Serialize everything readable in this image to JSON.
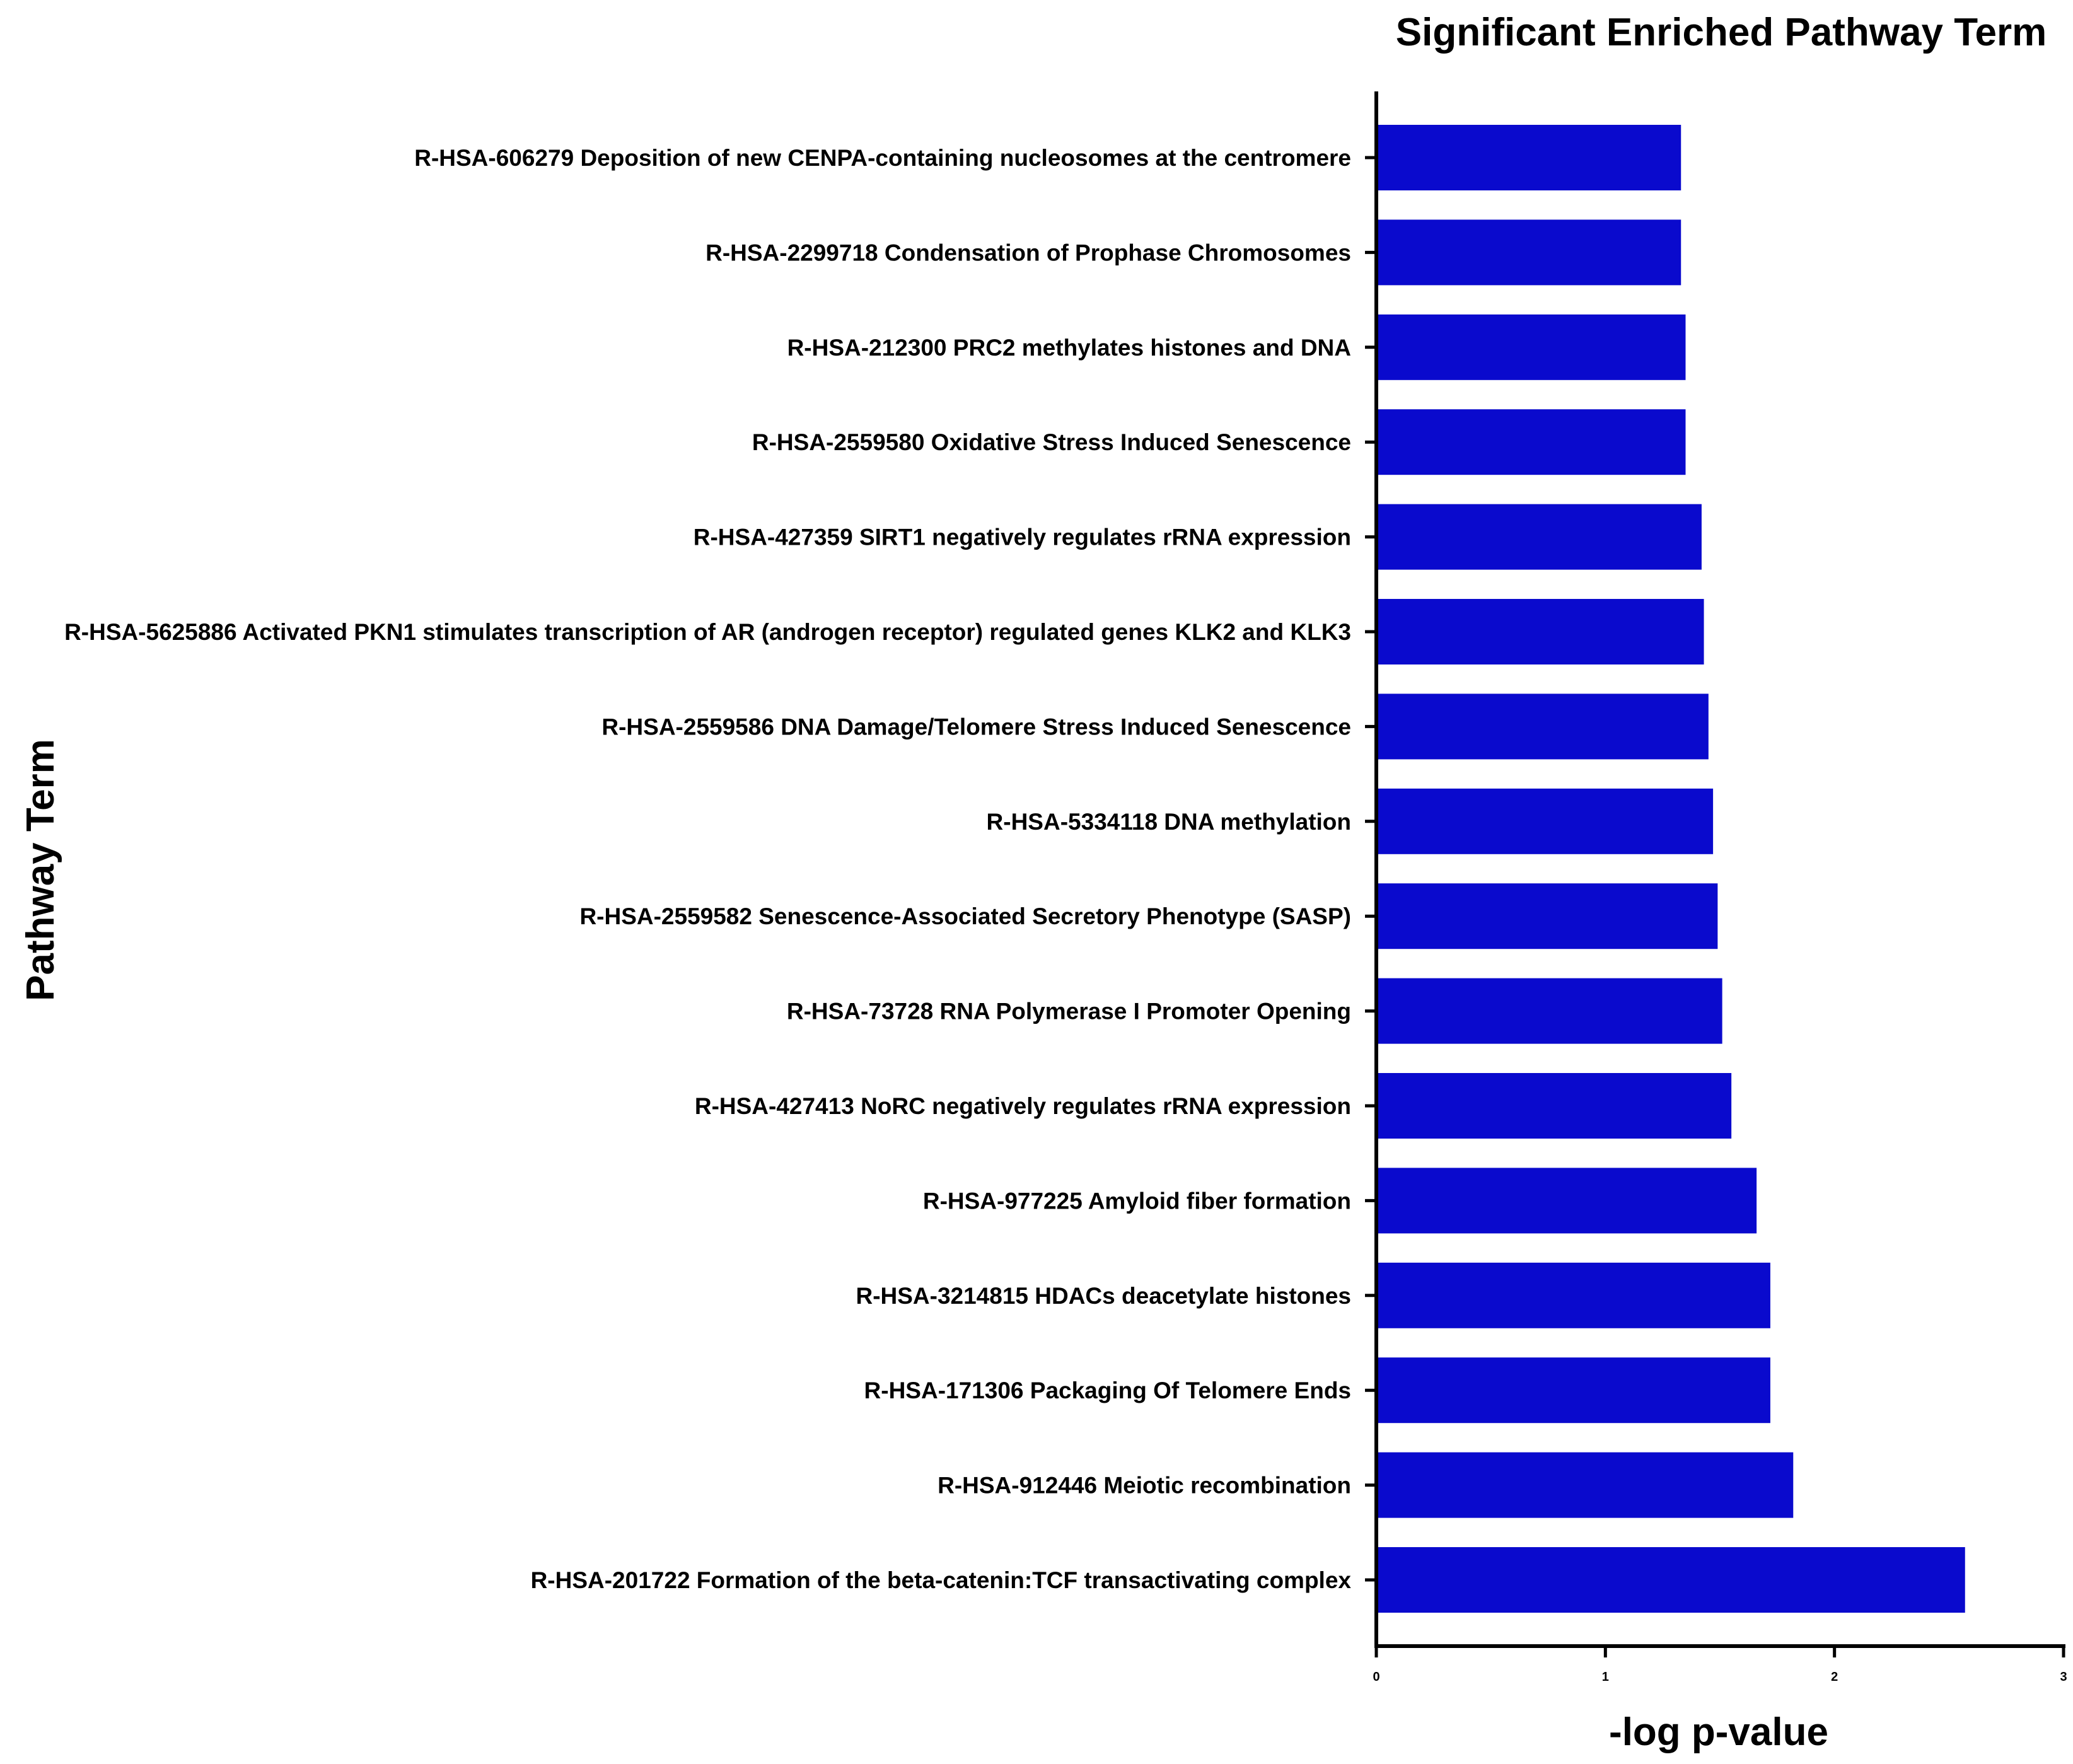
{
  "chart_data": {
    "type": "bar",
    "orientation": "horizontal",
    "title": "Significant Enriched Pathway Term",
    "xlabel": "-log p-value",
    "ylabel": "Pathway Term",
    "xlim": [
      0,
      3
    ],
    "xticks": [
      "0",
      "1",
      "2",
      "3"
    ],
    "grid": false,
    "bar_color": "#0A0ACD",
    "categories": [
      "R-HSA-606279 Deposition of new CENPA-containing nucleosomes at the centromere",
      "R-HSA-2299718 Condensation of Prophase Chromosomes",
      "R-HSA-212300 PRC2 methylates histones and DNA",
      "R-HSA-2559580 Oxidative Stress Induced Senescence",
      "R-HSA-427359 SIRT1 negatively regulates rRNA expression",
      "R-HSA-5625886 Activated PKN1 stimulates transcription of AR (androgen receptor) regulated genes KLK2 and KLK3",
      "R-HSA-2559586 DNA Damage/Telomere Stress Induced Senescence",
      "R-HSA-5334118 DNA methylation",
      "R-HSA-2559582 Senescence-Associated Secretory Phenotype (SASP)",
      "R-HSA-73728 RNA Polymerase I Promoter Opening",
      "R-HSA-427413 NoRC negatively regulates rRNA expression",
      "R-HSA-977225 Amyloid fiber formation",
      "R-HSA-3214815 HDACs deacetylate histones",
      "R-HSA-171306 Packaging Of Telomere Ends",
      "R-HSA-912446 Meiotic recombination",
      "R-HSA-201722 Formation of the beta-catenin:TCF transactivating complex"
    ],
    "values": [
      1.33,
      1.33,
      1.35,
      1.35,
      1.42,
      1.43,
      1.45,
      1.47,
      1.49,
      1.51,
      1.55,
      1.66,
      1.72,
      1.72,
      1.82,
      2.57
    ]
  }
}
